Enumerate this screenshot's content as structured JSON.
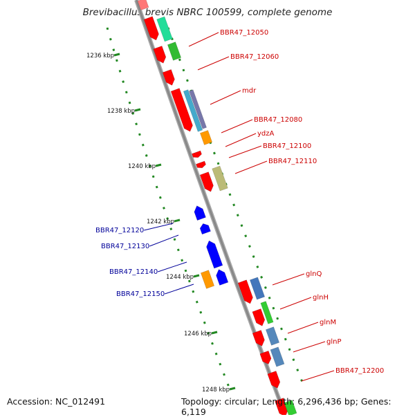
{
  "title": "Brevibacillus brevis NBRC 100599, complete genome",
  "footer": {
    "accession": "Accession: NC_012491",
    "summary": "Topology: circular; Length: 6,296,436 bp; Genes: 6,119"
  },
  "ticks": [
    "1236 kbp",
    "1238 kbp",
    "1240 kbp",
    "1242 kbp",
    "1244 kbp",
    "1246 kbp",
    "1248 kbp"
  ],
  "gene_labels": [
    {
      "name": "BBR47_12050",
      "strand": "forward"
    },
    {
      "name": "BBR47_12060",
      "strand": "forward"
    },
    {
      "name": "mdr",
      "strand": "forward"
    },
    {
      "name": "BBR47_12080",
      "strand": "forward"
    },
    {
      "name": "ydzA",
      "strand": "forward"
    },
    {
      "name": "BBR47_12100",
      "strand": "forward"
    },
    {
      "name": "BBR47_12110",
      "strand": "forward"
    },
    {
      "name": "BBR47_12120",
      "strand": "reverse"
    },
    {
      "name": "BBR47_12130",
      "strand": "reverse"
    },
    {
      "name": "BBR47_12140",
      "strand": "reverse"
    },
    {
      "name": "BBR47_12150",
      "strand": "reverse"
    },
    {
      "name": "glnQ",
      "strand": "forward"
    },
    {
      "name": "glnH",
      "strand": "forward"
    },
    {
      "name": "glnM",
      "strand": "forward"
    },
    {
      "name": "glnP",
      "strand": "forward"
    },
    {
      "name": "BBR47_12200",
      "strand": "forward"
    }
  ],
  "colors": {
    "forward_label": "#cc0000",
    "reverse_label": "#000099",
    "backbone": "#888888",
    "tick": "#228822",
    "forward_gene": "#ff0000",
    "reverse_gene": "#0000ff"
  }
}
